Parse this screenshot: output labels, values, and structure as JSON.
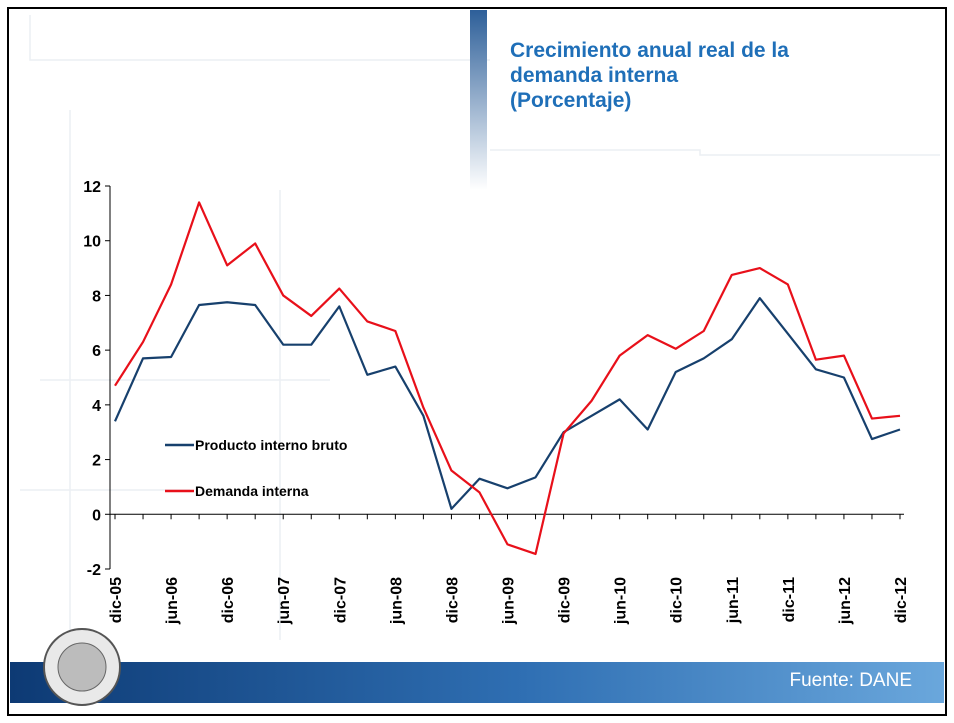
{
  "chart_data": {
    "type": "line",
    "title": "Crecimiento anual real de la demanda interna",
    "subtitle": "(Porcentaje)",
    "source": "Fuente: DANE",
    "categories": [
      "dic-05",
      null,
      "jun-06",
      null,
      "dic-06",
      null,
      "jun-07",
      null,
      "dic-07",
      null,
      "jun-08",
      null,
      "dic-08",
      null,
      "jun-09",
      null,
      "dic-09",
      null,
      "jun-10",
      null,
      "dic-10",
      null,
      "jun-11",
      null,
      "dic-11",
      null,
      "jun-12",
      null,
      "dic-12"
    ],
    "series": [
      {
        "name": "Producto interno bruto",
        "color": "#17406d",
        "values": [
          3.4,
          5.7,
          5.75,
          7.65,
          7.75,
          7.65,
          6.2,
          6.2,
          7.6,
          5.1,
          5.4,
          3.6,
          0.2,
          1.3,
          0.95,
          1.35,
          3.0,
          3.6,
          4.2,
          3.1,
          5.2,
          5.7,
          6.4,
          7.9,
          6.6,
          5.3,
          5.0,
          2.75,
          3.1
        ]
      },
      {
        "name": "Demanda interna",
        "color": "#e8101a",
        "values": [
          4.7,
          6.3,
          8.4,
          11.4,
          9.1,
          9.9,
          8.0,
          7.25,
          8.25,
          7.05,
          6.7,
          3.9,
          1.6,
          0.8,
          -1.1,
          -1.45,
          2.95,
          4.15,
          5.8,
          6.55,
          6.05,
          6.7,
          8.75,
          9.0,
          8.4,
          5.65,
          5.8,
          3.5,
          3.6
        ]
      }
    ],
    "ylim": [
      -2,
      12
    ],
    "yticks": [
      -2,
      0,
      2,
      4,
      6,
      8,
      10,
      12
    ],
    "grid": false,
    "legend": "left"
  }
}
